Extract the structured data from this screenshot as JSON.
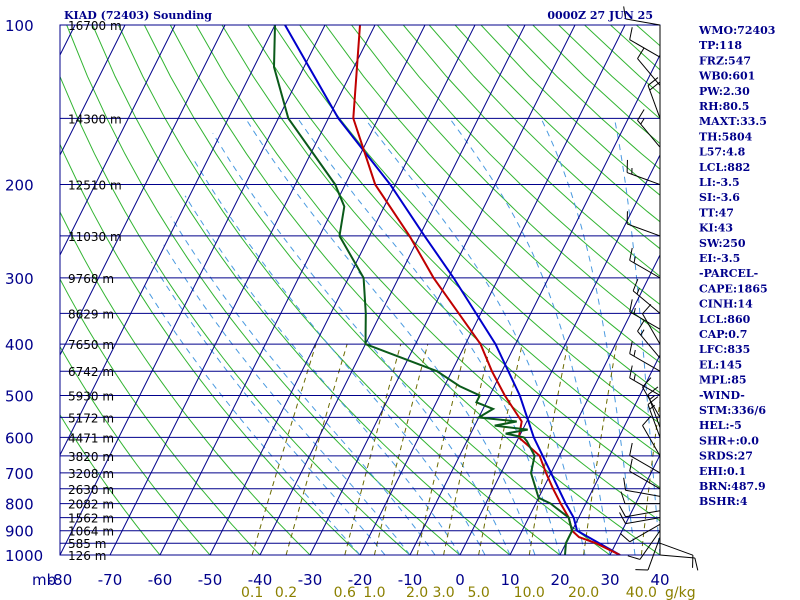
{
  "chart_data": {
    "type": "skew-t",
    "title": "KIAD (72403) Sounding",
    "valid_time": "0000Z 27 JUN 25",
    "pressure_unit_label": "mb",
    "mixing_ratio_unit_label": "g/kg",
    "pressure_ticks": [
      100,
      200,
      300,
      400,
      500,
      600,
      700,
      800,
      900,
      1000
    ],
    "temperature_ticks": [
      -80,
      -70,
      -60,
      -50,
      -40,
      -30,
      -20,
      -10,
      0,
      10,
      20,
      30,
      40
    ],
    "mixing_ratio_labels": [
      "0.1",
      "0.2",
      "0.6",
      "1.0",
      "2.0",
      "3.0",
      "5.0",
      "10.0",
      "20.0",
      "40.0"
    ],
    "mixing_ratio_values": [
      0.1,
      0.2,
      0.6,
      1.0,
      2.0,
      3.0,
      5.0,
      10.0,
      20.0,
      40.0
    ],
    "height_labels": [
      {
        "p": 100,
        "label": "16700 m"
      },
      {
        "p": 150,
        "label": "14300 m"
      },
      {
        "p": 200,
        "label": "12510 m"
      },
      {
        "p": 250,
        "label": "11030 m"
      },
      {
        "p": 300,
        "label": "9768 m"
      },
      {
        "p": 350,
        "label": "8629 m"
      },
      {
        "p": 400,
        "label": "7650 m"
      },
      {
        "p": 450,
        "label": "6742 m"
      },
      {
        "p": 500,
        "label": "5930 m"
      },
      {
        "p": 550,
        "label": "5172 m"
      },
      {
        "p": 600,
        "label": "4471 m"
      },
      {
        "p": 650,
        "label": "3820 m"
      },
      {
        "p": 700,
        "label": "3208 m"
      },
      {
        "p": 750,
        "label": "2630 m"
      },
      {
        "p": 800,
        "label": "2082 m"
      },
      {
        "p": 850,
        "label": "1562 m"
      },
      {
        "p": 900,
        "label": "1064 m"
      },
      {
        "p": 950,
        "label": "585 m"
      },
      {
        "p": 1000,
        "label": "126 m"
      }
    ],
    "temperature_profile": [
      [
        1000,
        32
      ],
      [
        950,
        26
      ],
      [
        925,
        22
      ],
      [
        900,
        20
      ],
      [
        850,
        18
      ],
      [
        800,
        15
      ],
      [
        750,
        12
      ],
      [
        700,
        9
      ],
      [
        650,
        6
      ],
      [
        600,
        0
      ],
      [
        560,
        -1
      ],
      [
        500,
        -7
      ],
      [
        450,
        -12
      ],
      [
        400,
        -17
      ],
      [
        300,
        -33
      ],
      [
        250,
        -42
      ],
      [
        200,
        -54
      ],
      [
        150,
        -65
      ],
      [
        100,
        -73
      ],
      [
        90,
        -72
      ]
    ],
    "dewpoint_profile": [
      [
        1000,
        21
      ],
      [
        950,
        20
      ],
      [
        900,
        20
      ],
      [
        850,
        18
      ],
      [
        810,
        14
      ],
      [
        800,
        13
      ],
      [
        780,
        10
      ],
      [
        700,
        6
      ],
      [
        650,
        5
      ],
      [
        610,
        2
      ],
      [
        600,
        1
      ],
      [
        590,
        -3
      ],
      [
        580,
        1
      ],
      [
        570,
        -6
      ],
      [
        560,
        -2
      ],
      [
        550,
        -10
      ],
      [
        530,
        -8
      ],
      [
        515,
        -12
      ],
      [
        500,
        -12
      ],
      [
        480,
        -17
      ],
      [
        450,
        -23
      ],
      [
        400,
        -40
      ],
      [
        350,
        -43
      ],
      [
        300,
        -47
      ],
      [
        250,
        -56
      ],
      [
        220,
        -58
      ],
      [
        200,
        -62
      ],
      [
        150,
        -78
      ],
      [
        120,
        -86
      ],
      [
        100,
        -90
      ]
    ],
    "parcel_profile": [
      [
        1000,
        32
      ],
      [
        900,
        21
      ],
      [
        850,
        19
      ],
      [
        800,
        16
      ],
      [
        700,
        10
      ],
      [
        600,
        3
      ],
      [
        500,
        -4
      ],
      [
        400,
        -14
      ],
      [
        300,
        -29
      ],
      [
        250,
        -39
      ],
      [
        200,
        -51
      ],
      [
        150,
        -68
      ],
      [
        120,
        -79
      ],
      [
        100,
        -88
      ]
    ],
    "wind_barbs": [
      {
        "p": 1000,
        "dir": 95,
        "spd": 10
      },
      {
        "p": 950,
        "dir": 110,
        "spd": 8
      },
      {
        "p": 925,
        "dir": 200,
        "spd": 10
      },
      {
        "p": 900,
        "dir": 215,
        "spd": 12
      },
      {
        "p": 875,
        "dir": 240,
        "spd": 10
      },
      {
        "p": 850,
        "dir": 260,
        "spd": 8
      },
      {
        "p": 825,
        "dir": 260,
        "spd": 8
      },
      {
        "p": 800,
        "dir": 270,
        "spd": 10
      },
      {
        "p": 775,
        "dir": 280,
        "spd": 8
      },
      {
        "p": 750,
        "dir": 300,
        "spd": 10
      },
      {
        "p": 700,
        "dir": 300,
        "spd": 8
      },
      {
        "p": 650,
        "dir": 330,
        "spd": 10
      },
      {
        "p": 600,
        "dir": 340,
        "spd": 15
      },
      {
        "p": 575,
        "dir": 340,
        "spd": 15
      },
      {
        "p": 550,
        "dir": 330,
        "spd": 10
      },
      {
        "p": 500,
        "dir": 300,
        "spd": 15
      },
      {
        "p": 450,
        "dir": 300,
        "spd": 15
      },
      {
        "p": 425,
        "dir": 320,
        "spd": 15
      },
      {
        "p": 400,
        "dir": 330,
        "spd": 10
      },
      {
        "p": 375,
        "dir": 300,
        "spd": 15
      },
      {
        "p": 350,
        "dir": 310,
        "spd": 15
      },
      {
        "p": 300,
        "dir": 300,
        "spd": 15
      },
      {
        "p": 250,
        "dir": 290,
        "spd": 10
      },
      {
        "p": 200,
        "dir": 290,
        "spd": 15
      },
      {
        "p": 170,
        "dir": 320,
        "spd": 15
      },
      {
        "p": 150,
        "dir": 340,
        "spd": 20
      },
      {
        "p": 130,
        "dir": 320,
        "spd": 10
      },
      {
        "p": 115,
        "dir": 300,
        "spd": 10
      },
      {
        "p": 100,
        "dir": 280,
        "spd": 10
      }
    ],
    "indices": [
      "WMO:72403",
      "TP:118",
      "FRZ:547",
      "WB0:601",
      "PW:2.30",
      "RH:80.5",
      "MAXT:33.5",
      "TH:5804",
      "L57:4.8",
      "LCL:882",
      "LI:-3.5",
      "SI:-3.6",
      "TT:47",
      "KI:43",
      "SW:250",
      "EI:-3.5",
      "-PARCEL-",
      "CAPE:1865",
      "CINH:14",
      "LCL:860",
      "CAP:0.7",
      "LFC:835",
      "EL:145",
      "MPL:85",
      "-WIND-",
      "STM:336/6",
      "HEL:-5",
      "SHR+:0.0",
      "SRDS:27",
      "EHI:0.1",
      "BRN:487.9",
      "BSHR:4"
    ],
    "colors": {
      "grid": "#00008b",
      "dry_adiabat": "#32b432",
      "moist_adiabat": "#4a9ae0",
      "mixing_ratio": "#6b6b00",
      "temperature": "#c00000",
      "dewpoint": "#0a5a1a",
      "parcel": "#0000cc",
      "label": "#00008b",
      "mixing_label": "#8b8000"
    }
  }
}
